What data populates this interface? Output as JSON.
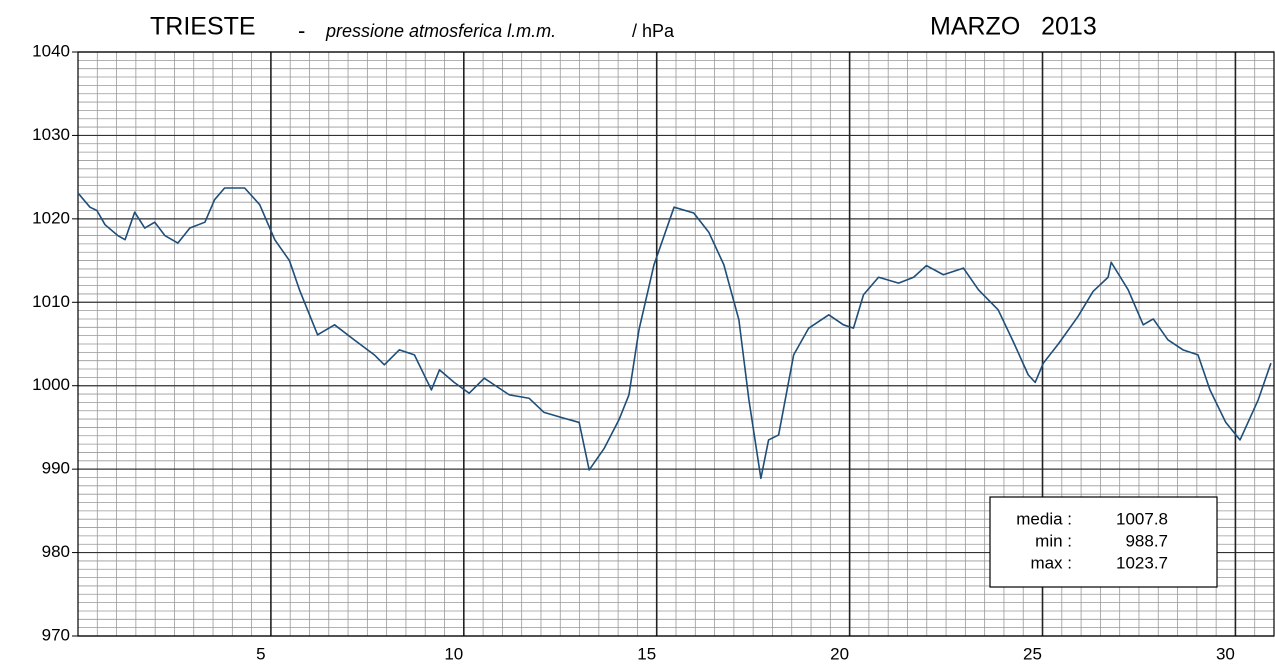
{
  "chart_data": {
    "type": "line",
    "title": "TRIESTE",
    "title_separator": "-",
    "subtitle": "pressione atmosferica l.m.m.",
    "unit": "/ hPa",
    "period": "MARZO   2013",
    "xlim": [
      0,
      31
    ],
    "xticks": [
      5,
      10,
      15,
      20,
      25,
      30
    ],
    "ylim": [
      970,
      1040
    ],
    "yticks": [
      970,
      980,
      990,
      1000,
      1010,
      1020,
      1030,
      1040
    ],
    "grid": true,
    "minor_grid_step": {
      "x": 0.5,
      "y": 1
    },
    "series": [
      {
        "name": "pressione",
        "color": "#1f4e79",
        "x": [
          0,
          0.31,
          0.49,
          0.7,
          1.03,
          1.22,
          1.47,
          1.73,
          1.99,
          2.25,
          2.59,
          2.9,
          3.29,
          3.54,
          3.8,
          4.32,
          4.71,
          5.1,
          5.48,
          5.74,
          6.21,
          6.65,
          7.16,
          7.68,
          7.94,
          8.33,
          8.72,
          9.16,
          9.37,
          9.75,
          10.14,
          10.53,
          10.79,
          11.18,
          11.69,
          12.08,
          12.6,
          12.99,
          13.25,
          13.64,
          14.02,
          14.28,
          14.54,
          14.93,
          15.45,
          15.96,
          16.35,
          16.74,
          17.13,
          17.39,
          17.7,
          17.9,
          18.16,
          18.55,
          18.94,
          19.46,
          19.84,
          20.1,
          20.36,
          20.75,
          21.27,
          21.66,
          21.99,
          22.43,
          22.95,
          23.34,
          23.85,
          24.24,
          24.63,
          24.81,
          25.02,
          25.41,
          25.92,
          26.31,
          26.7,
          26.78,
          27.22,
          27.61,
          27.87,
          28.25,
          28.64,
          29.03,
          29.34,
          29.75,
          30.12,
          30.59,
          30.92
        ],
        "values": [
          1023.1,
          1021.4,
          1021,
          1019.3,
          1018,
          1017.5,
          1020.8,
          1018.9,
          1019.6,
          1018,
          1017.1,
          1018.9,
          1019.6,
          1022.3,
          1023.7,
          1023.7,
          1021.7,
          1017.5,
          1015,
          1011.5,
          1006.1,
          1007.3,
          1005.5,
          1003.7,
          1002.5,
          1004.3,
          1003.7,
          999.5,
          1001.9,
          1000.4,
          999.1,
          1000.9,
          1000.1,
          998.9,
          998.5,
          996.8,
          996.1,
          995.6,
          989.9,
          992.5,
          995.9,
          998.9,
          1006.7,
          1014.5,
          1021.4,
          1020.7,
          1018.4,
          1014.5,
          1007.9,
          998.3,
          988.9,
          993.5,
          994.1,
          1003.7,
          1006.9,
          1008.5,
          1007.3,
          1006.9,
          1010.9,
          1013,
          1012.3,
          1013,
          1014.4,
          1013.3,
          1014.1,
          1011.5,
          1009.1,
          1005.3,
          1001.3,
          1000.4,
          1002.7,
          1005,
          1008.3,
          1011.3,
          1013,
          1014.8,
          1011.5,
          1007.3,
          1008,
          1005.5,
          1004.3,
          1003.7,
          999.5,
          995.6,
          993.5,
          998.3,
          1002.7
        ]
      }
    ],
    "stats": [
      {
        "label": "media :",
        "value": 1007.8
      },
      {
        "label": "min :",
        "value": 988.7
      },
      {
        "label": "max :",
        "value": 1023.7
      }
    ]
  }
}
